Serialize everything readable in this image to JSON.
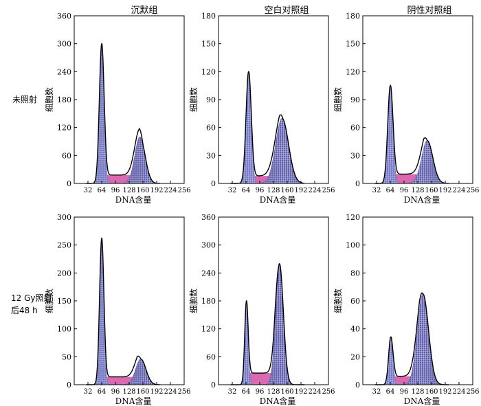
{
  "column_titles": [
    "沉默组",
    "空白对照组",
    "阴性对照组"
  ],
  "row_labels": [
    [
      "未照射"
    ],
    [
      "12 Gy照射",
      "后48 h"
    ]
  ],
  "chart_data": [
    {
      "type": "area",
      "row": 0,
      "col": 0,
      "xlabel": "DNA含量",
      "ylabel": "细胞数",
      "xlim": [
        0,
        256
      ],
      "ylim": [
        0,
        360
      ],
      "xticks": [
        32,
        64,
        96,
        128,
        160,
        192,
        224,
        256
      ],
      "yticks": [
        0,
        60,
        120,
        180,
        240,
        300,
        360
      ],
      "series": [
        {
          "component": "G0/G1",
          "center": 64,
          "height": 300,
          "sigma": 5.5
        },
        {
          "component": "S",
          "start": 64,
          "end": 160,
          "height": 18
        },
        {
          "component": "G2/M",
          "center": 153,
          "height": 100,
          "sigma": 12
        }
      ]
    },
    {
      "type": "area",
      "row": 0,
      "col": 1,
      "xlabel": "DNA含量",
      "ylabel": "细胞数",
      "xlim": [
        0,
        256
      ],
      "ylim": [
        0,
        180
      ],
      "xticks": [
        32,
        64,
        96,
        128,
        160,
        192,
        224,
        256
      ],
      "yticks": [
        0,
        30,
        60,
        90,
        120,
        150,
        180
      ],
      "series": [
        {
          "component": "G0/G1",
          "center": 70,
          "height": 120,
          "sigma": 6
        },
        {
          "component": "S",
          "start": 70,
          "end": 150,
          "height": 8
        },
        {
          "component": "G2/M",
          "center": 148,
          "height": 70,
          "sigma": 15
        }
      ]
    },
    {
      "type": "area",
      "row": 0,
      "col": 2,
      "xlabel": "DNA含量",
      "ylabel": "细胞数",
      "xlim": [
        0,
        256
      ],
      "ylim": [
        0,
        180
      ],
      "xticks": [
        32,
        64,
        96,
        128,
        160,
        192,
        224,
        256
      ],
      "yticks": [
        0,
        30,
        60,
        90,
        120,
        150,
        180
      ],
      "series": [
        {
          "component": "G0/G1",
          "center": 64,
          "height": 105,
          "sigma": 6
        },
        {
          "component": "S",
          "start": 64,
          "end": 150,
          "height": 10
        },
        {
          "component": "G2/M",
          "center": 150,
          "height": 46,
          "sigma": 13
        }
      ]
    },
    {
      "type": "area",
      "row": 1,
      "col": 0,
      "xlabel": "DNA含量",
      "ylabel": "细胞数",
      "xlim": [
        0,
        256
      ],
      "ylim": [
        0,
        300
      ],
      "xticks": [
        32,
        64,
        96,
        128,
        160,
        192,
        224,
        256
      ],
      "yticks": [
        0,
        50,
        100,
        150,
        200,
        250,
        300
      ],
      "series": [
        {
          "component": "G0/G1",
          "center": 64,
          "height": 262,
          "sigma": 5
        },
        {
          "component": "S",
          "start": 64,
          "end": 155,
          "height": 14
        },
        {
          "component": "G2/M",
          "center": 155,
          "height": 46,
          "sigma": 12
        }
      ]
    },
    {
      "type": "area",
      "row": 1,
      "col": 1,
      "xlabel": "DNA含量",
      "ylabel": "细胞数",
      "xlim": [
        0,
        256
      ],
      "ylim": [
        0,
        360
      ],
      "xticks": [
        32,
        64,
        96,
        128,
        160,
        192,
        224,
        256
      ],
      "yticks": [
        0,
        60,
        120,
        180,
        240,
        300,
        360
      ],
      "series": [
        {
          "component": "G0/G1",
          "center": 65,
          "height": 180,
          "sigma": 4
        },
        {
          "component": "S",
          "start": 65,
          "end": 140,
          "height": 25
        },
        {
          "component": "G2/M",
          "center": 142,
          "height": 260,
          "sigma": 9
        }
      ]
    },
    {
      "type": "area",
      "row": 1,
      "col": 2,
      "xlabel": "DNA含量",
      "ylabel": "细胞数",
      "xlim": [
        0,
        256
      ],
      "ylim": [
        0,
        120
      ],
      "xticks": [
        32,
        64,
        96,
        128,
        160,
        192,
        224,
        256
      ],
      "yticks": [
        0,
        20,
        40,
        60,
        80,
        100,
        120
      ],
      "series": [
        {
          "component": "G0/G1",
          "center": 65,
          "height": 34,
          "sigma": 5
        },
        {
          "component": "S",
          "start": 65,
          "end": 140,
          "height": 6
        },
        {
          "component": "G2/M",
          "center": 140,
          "height": 65,
          "sigma": 13
        }
      ]
    }
  ],
  "colors": {
    "g1_fill": "#7377c4",
    "s_fill": "#d65aa6",
    "g2_fill": "#5f5fae",
    "hatch": "#ffffff",
    "envelope": "#000000"
  }
}
